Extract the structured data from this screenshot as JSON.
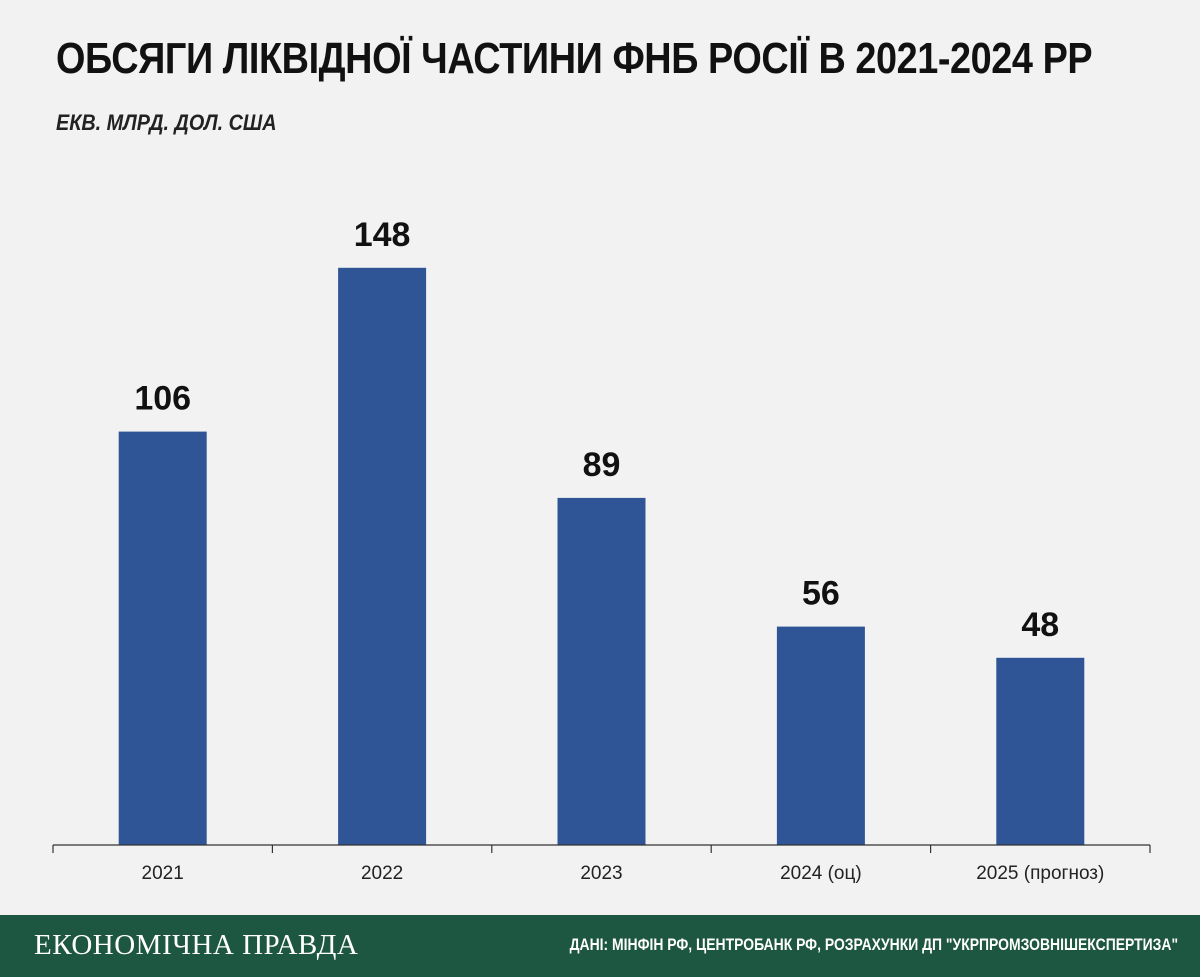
{
  "colors": {
    "background": "#f2f2f2",
    "bar": "#2f5597",
    "footer": "#1d5641",
    "text": "#111111"
  },
  "chart_data": {
    "type": "bar",
    "title": "ОБСЯГИ ЛІКВІДНОЇ ЧАСТИНИ ФНБ РОСІЇ В 2021-2024 РР",
    "subtitle": "ЕКВ. МЛРД. ДОЛ. США",
    "categories": [
      "2021",
      "2022",
      "2023",
      "2024 (оц)",
      "2025 (прогноз)"
    ],
    "values": [
      106,
      148,
      89,
      56,
      48
    ],
    "ylim": [
      0,
      170
    ],
    "grid": false,
    "data_labels": true
  },
  "footer": {
    "logo": "ЕКОНОМІЧНА ПРАВДА",
    "source": "ДАНІ: МІНФІН РФ, ЦЕНТРОБАНК РФ, РОЗРАХУНКИ ДП \"УКРПРОМЗОВНІШЕКСПЕРТИЗА\""
  }
}
